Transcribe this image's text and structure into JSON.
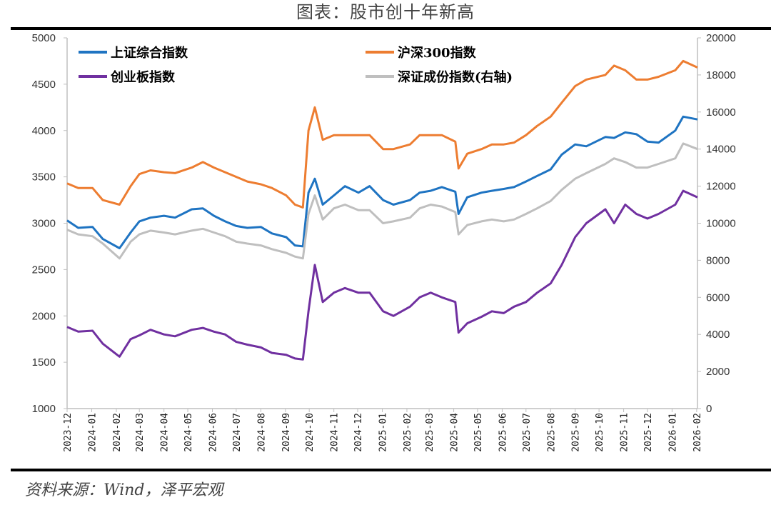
{
  "title": "图表：股市创十年新高",
  "source": "资料来源：Wind，泽平宏观",
  "chart_data": {
    "type": "line",
    "title": "图表：股市创十年新高",
    "x_type": "date",
    "x_ticks": [
      "2023-12",
      "2024-01",
      "2024-02",
      "2024-03",
      "2024-04",
      "2024-05",
      "2024-06",
      "2024-07",
      "2024-08",
      "2024-09",
      "2024-10",
      "2024-11",
      "2024-12",
      "2025-01",
      "2025-02",
      "2025-03",
      "2025-04",
      "2025-05",
      "2025-06",
      "2025-07",
      "2025-08",
      "2025-09",
      "2025-10",
      "2025-11",
      "2025-12",
      "2026-01",
      "2026-02"
    ],
    "y_left": {
      "range": [
        1000,
        5000
      ],
      "ticks": [
        1000,
        1500,
        2000,
        2500,
        3000,
        3500,
        4000,
        4500,
        5000
      ]
    },
    "y_right": {
      "range": [
        0,
        20000
      ],
      "ticks": [
        0,
        2000,
        4000,
        6000,
        8000,
        10000,
        12000,
        14000,
        16000,
        18000,
        20000
      ]
    },
    "grid": false,
    "legend_placement": "top",
    "x": [
      "2023-12-01",
      "2023-12-15",
      "2024-01-02",
      "2024-01-15",
      "2024-02-05",
      "2024-02-19",
      "2024-03-01",
      "2024-03-15",
      "2024-04-01",
      "2024-04-15",
      "2024-05-06",
      "2024-05-20",
      "2024-06-03",
      "2024-06-17",
      "2024-07-01",
      "2024-07-15",
      "2024-08-01",
      "2024-08-15",
      "2024-09-02",
      "2024-09-13",
      "2024-09-23",
      "2024-09-30",
      "2024-10-08",
      "2024-10-18",
      "2024-11-01",
      "2024-11-15",
      "2024-12-02",
      "2024-12-16",
      "2025-01-02",
      "2025-01-15",
      "2025-02-05",
      "2025-02-17",
      "2025-03-03",
      "2025-03-17",
      "2025-04-03",
      "2025-04-07",
      "2025-04-18",
      "2025-05-06",
      "2025-05-19",
      "2025-06-03",
      "2025-06-16",
      "2025-07-01",
      "2025-07-15",
      "2025-08-01",
      "2025-08-15",
      "2025-09-01",
      "2025-09-15",
      "2025-10-09",
      "2025-10-20",
      "2025-11-03",
      "2025-11-17",
      "2025-12-01",
      "2025-12-15",
      "2026-01-05",
      "2026-01-15",
      "2026-02-02"
    ],
    "series": [
      {
        "name": "上证综合指数",
        "axis": "left",
        "color": "#1F74C2",
        "values": [
          3030,
          2950,
          2960,
          2830,
          2730,
          2900,
          3020,
          3060,
          3080,
          3060,
          3150,
          3160,
          3080,
          3020,
          2970,
          2950,
          2960,
          2890,
          2850,
          2760,
          2750,
          3330,
          3480,
          3200,
          3300,
          3400,
          3330,
          3400,
          3250,
          3200,
          3250,
          3330,
          3350,
          3390,
          3340,
          3100,
          3280,
          3330,
          3350,
          3370,
          3390,
          3450,
          3510,
          3580,
          3740,
          3850,
          3830,
          3930,
          3920,
          3980,
          3960,
          3880,
          3870,
          4000,
          4150,
          4120
        ]
      },
      {
        "name": "沪深300指数",
        "axis": "left",
        "color": "#ED7D31",
        "values": [
          3430,
          3380,
          3380,
          3250,
          3200,
          3400,
          3530,
          3570,
          3550,
          3540,
          3600,
          3660,
          3600,
          3550,
          3500,
          3450,
          3420,
          3380,
          3300,
          3200,
          3170,
          4000,
          4250,
          3900,
          3950,
          3950,
          3950,
          3950,
          3800,
          3800,
          3850,
          3950,
          3950,
          3950,
          3880,
          3590,
          3750,
          3800,
          3850,
          3850,
          3870,
          3950,
          4050,
          4150,
          4300,
          4480,
          4550,
          4600,
          4700,
          4650,
          4550,
          4550,
          4580,
          4650,
          4750,
          4680
        ]
      },
      {
        "name": "创业板指数",
        "axis": "left",
        "color": "#7030A0",
        "values": [
          1880,
          1830,
          1840,
          1700,
          1560,
          1750,
          1790,
          1850,
          1800,
          1780,
          1850,
          1870,
          1830,
          1800,
          1720,
          1690,
          1660,
          1600,
          1580,
          1540,
          1530,
          2050,
          2550,
          2150,
          2250,
          2300,
          2250,
          2250,
          2050,
          2000,
          2100,
          2200,
          2250,
          2200,
          2150,
          1820,
          1920,
          1990,
          2050,
          2030,
          2100,
          2150,
          2250,
          2350,
          2550,
          2850,
          3000,
          3150,
          3000,
          3200,
          3100,
          3050,
          3100,
          3200,
          3350,
          3280
        ]
      },
      {
        "name": "深证成份指数(右轴)",
        "axis": "right",
        "color": "#BFBFBF",
        "values": [
          9650,
          9400,
          9300,
          8900,
          8100,
          9000,
          9400,
          9600,
          9500,
          9400,
          9600,
          9700,
          9500,
          9300,
          9000,
          8900,
          8800,
          8600,
          8400,
          8200,
          8100,
          10500,
          11500,
          10200,
          10800,
          11000,
          10700,
          10700,
          10000,
          10100,
          10300,
          10800,
          11000,
          10900,
          10600,
          9400,
          9900,
          10100,
          10200,
          10100,
          10200,
          10500,
          10800,
          11200,
          11800,
          12400,
          12700,
          13200,
          13500,
          13300,
          13000,
          13000,
          13200,
          13500,
          14300,
          14000
        ]
      }
    ]
  }
}
